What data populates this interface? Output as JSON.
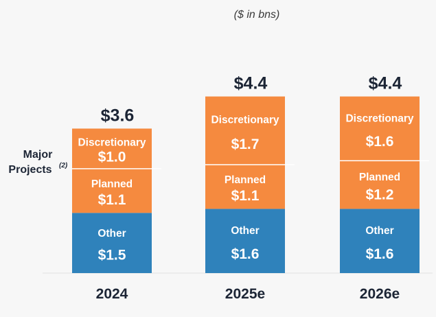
{
  "unit_note": "($ in bns)",
  "side_label": {
    "line1": "Major",
    "line2": "Projects",
    "superscript": "(2)"
  },
  "colors": {
    "orange": "#f58a3f",
    "blue": "#2f82bb",
    "divider": "#ffffff",
    "text_dark": "#1c2535"
  },
  "chart_data": {
    "type": "bar",
    "stacked": true,
    "categories": [
      "2024",
      "2025e",
      "2026e"
    ],
    "totals": [
      "$3.6",
      "$4.4",
      "$4.4"
    ],
    "series": [
      {
        "name": "Other",
        "values": [
          1.5,
          1.6,
          1.6
        ],
        "labels": [
          "$1.5",
          "$1.6",
          "$1.6"
        ],
        "color": "#2f82bb"
      },
      {
        "name": "Planned",
        "values": [
          1.1,
          1.1,
          1.2
        ],
        "labels": [
          "$1.1",
          "$1.1",
          "$1.2"
        ],
        "color": "#f58a3f"
      },
      {
        "name": "Discretionary",
        "values": [
          1.0,
          1.7,
          1.6
        ],
        "labels": [
          "$1.0",
          "$1.7",
          "$1.6"
        ],
        "color": "#f58a3f"
      }
    ],
    "ylim": [
      0,
      4.8
    ],
    "grid": false,
    "legend": "none"
  }
}
